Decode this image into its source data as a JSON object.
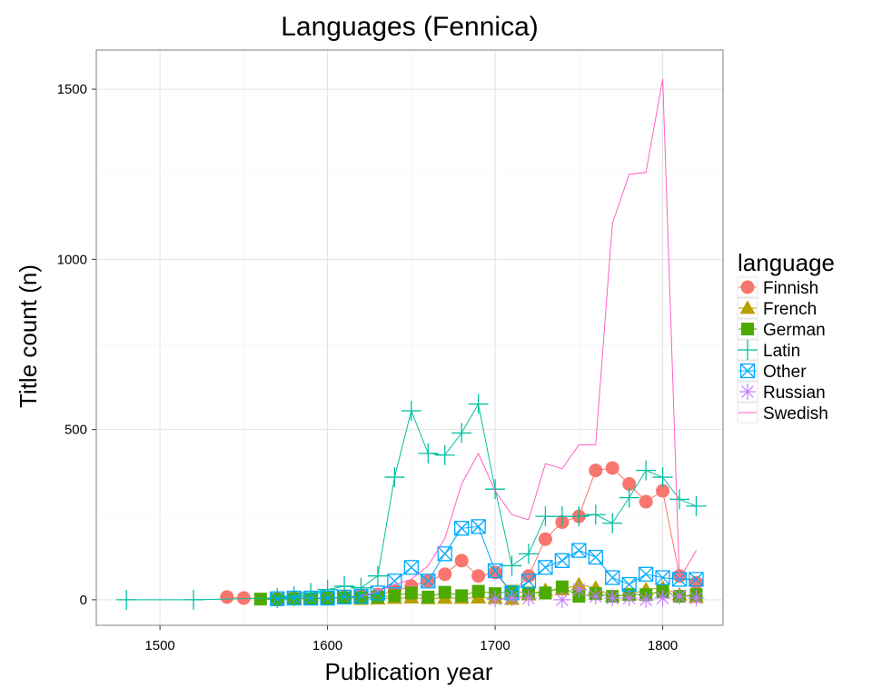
{
  "chart_data": {
    "type": "line",
    "title": "Languages (Fennica)",
    "xlabel": "Publication year",
    "ylabel": "Title count (n)",
    "xlim": [
      1462,
      1836
    ],
    "ylim": [
      -75,
      1615
    ],
    "xticks": [
      1500,
      1600,
      1700,
      1800
    ],
    "yticks": [
      0,
      500,
      1000,
      1500
    ],
    "grid": true,
    "legend": {
      "title": "language",
      "position": "right"
    },
    "series": [
      {
        "name": "Finnish",
        "color": "#F8766D",
        "marker": "circle",
        "line": true,
        "x": [
          1540,
          1550,
          1570,
          1580,
          1590,
          1600,
          1610,
          1620,
          1630,
          1640,
          1650,
          1660,
          1670,
          1680,
          1690,
          1700,
          1710,
          1720,
          1730,
          1740,
          1750,
          1760,
          1770,
          1780,
          1790,
          1800,
          1810,
          1820
        ],
        "y": [
          8,
          5,
          2,
          5,
          3,
          4,
          8,
          12,
          15,
          25,
          40,
          55,
          75,
          115,
          70,
          80,
          20,
          70,
          178,
          228,
          245,
          380,
          387,
          340,
          288,
          320,
          70,
          50
        ]
      },
      {
        "name": "French",
        "color": "#B79F00",
        "marker": "triangle",
        "line": true,
        "x": [
          1620,
          1630,
          1640,
          1650,
          1660,
          1670,
          1680,
          1690,
          1700,
          1710,
          1720,
          1730,
          1740,
          1750,
          1760,
          1770,
          1780,
          1790,
          1800,
          1810,
          1820
        ],
        "y": [
          2,
          3,
          5,
          6,
          4,
          5,
          5,
          6,
          5,
          2,
          15,
          28,
          30,
          45,
          35,
          10,
          15,
          30,
          35,
          15,
          8
        ]
      },
      {
        "name": "German",
        "color": "#4DAA00",
        "marker": "square",
        "line": true,
        "x": [
          1560,
          1570,
          1580,
          1590,
          1600,
          1610,
          1620,
          1630,
          1640,
          1650,
          1660,
          1670,
          1680,
          1690,
          1700,
          1710,
          1720,
          1730,
          1740,
          1750,
          1760,
          1770,
          1780,
          1790,
          1800,
          1810,
          1820
        ],
        "y": [
          2,
          1,
          3,
          3,
          5,
          6,
          6,
          8,
          12,
          20,
          8,
          22,
          12,
          25,
          18,
          25,
          20,
          20,
          38,
          10,
          18,
          10,
          15,
          15,
          25,
          10,
          15
        ]
      },
      {
        "name": "Latin",
        "color": "#00BFA0",
        "marker": "plus",
        "line": true,
        "x": [
          1480,
          1520,
          1570,
          1580,
          1590,
          1600,
          1610,
          1620,
          1630,
          1640,
          1650,
          1660,
          1670,
          1680,
          1690,
          1700,
          1710,
          1720,
          1730,
          1740,
          1750,
          1760,
          1770,
          1780,
          1790,
          1800,
          1810,
          1820
        ],
        "y": [
          0,
          0,
          5,
          10,
          20,
          30,
          40,
          35,
          70,
          360,
          555,
          430,
          425,
          490,
          575,
          325,
          100,
          135,
          245,
          245,
          245,
          250,
          225,
          300,
          380,
          360,
          295,
          275
        ]
      },
      {
        "name": "Other",
        "color": "#00A9FF",
        "marker": "boxx",
        "line": true,
        "x": [
          1570,
          1580,
          1590,
          1600,
          1610,
          1620,
          1630,
          1640,
          1650,
          1660,
          1670,
          1680,
          1690,
          1700,
          1710,
          1720,
          1730,
          1740,
          1750,
          1760,
          1770,
          1780,
          1790,
          1800,
          1810,
          1820
        ],
        "y": [
          3,
          5,
          5,
          5,
          8,
          10,
          20,
          55,
          95,
          55,
          135,
          210,
          215,
          85,
          20,
          55,
          95,
          115,
          145,
          125,
          65,
          45,
          75,
          65,
          60,
          60
        ]
      },
      {
        "name": "Russian",
        "color": "#C77CFF",
        "marker": "asterisk",
        "line": false,
        "x": [
          1700,
          1710,
          1720,
          1740,
          1750,
          1760,
          1770,
          1780,
          1790,
          1800,
          1810,
          1820
        ],
        "y": [
          2,
          5,
          5,
          0,
          30,
          10,
          5,
          5,
          0,
          5,
          10,
          5
        ]
      },
      {
        "name": "Swedish",
        "color": "#FF61C3",
        "marker": "none",
        "line": true,
        "x": [
          1620,
          1630,
          1640,
          1650,
          1660,
          1670,
          1680,
          1690,
          1700,
          1710,
          1720,
          1730,
          1740,
          1750,
          1760,
          1770,
          1780,
          1790,
          1800,
          1810,
          1820
        ],
        "y": [
          10,
          25,
          45,
          60,
          100,
          180,
          340,
          430,
          320,
          250,
          235,
          400,
          385,
          455,
          455,
          1105,
          1250,
          1255,
          1530,
          60,
          145
        ]
      }
    ]
  }
}
